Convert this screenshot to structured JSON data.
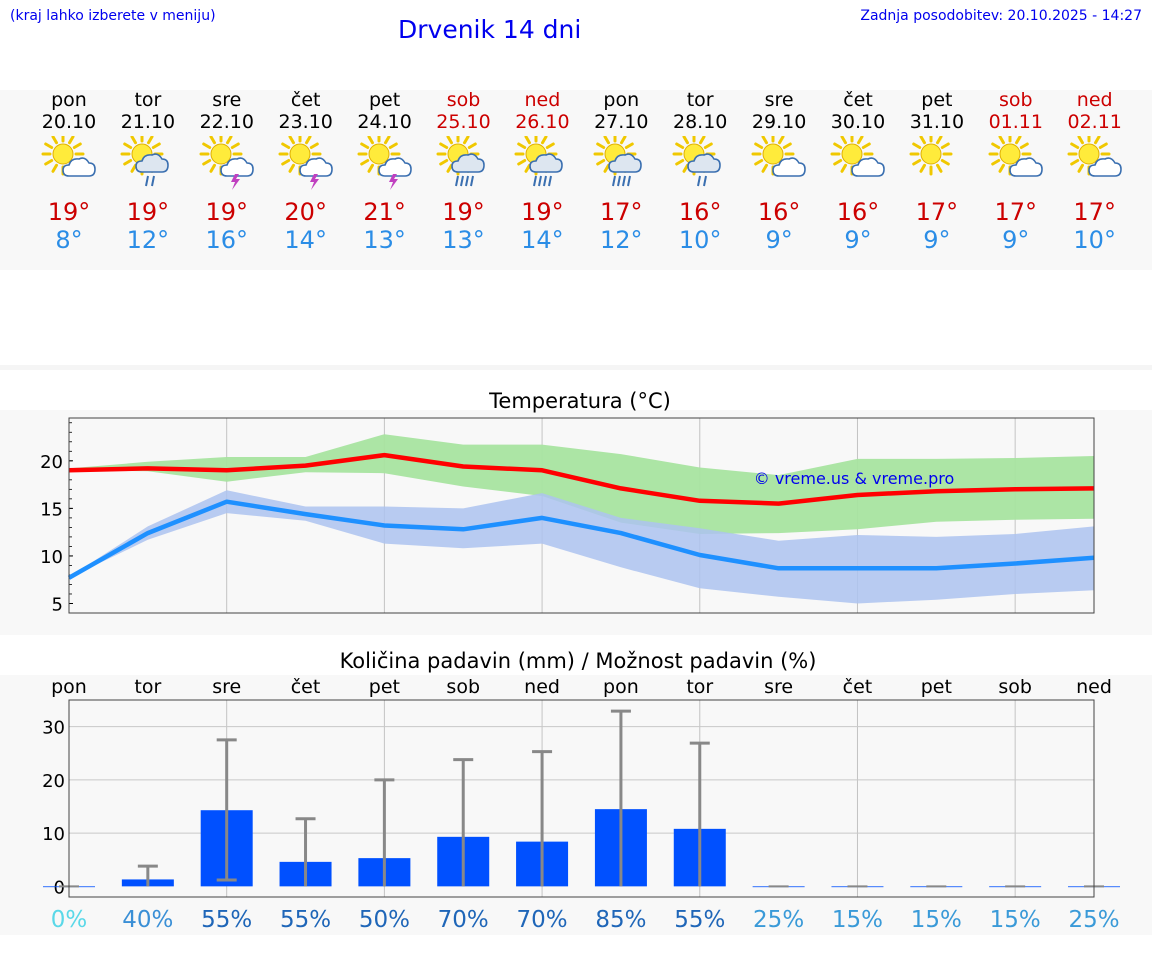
{
  "header": {
    "hint": "(kraj lahko izberete v meniju)",
    "title": "Drvenik 14 dni",
    "updated": "Zadnja posodobitev: 20.10.2025 - 14:27"
  },
  "colors": {
    "max_temp": "#cc0000",
    "min_temp": "#2b8de6",
    "link_blue": "#0000ee",
    "max_band": "#a8e4a0",
    "min_band": "#adc3f0",
    "bar": "#0050ff"
  },
  "days": [
    {
      "name": "pon",
      "date": "20.10",
      "weekend": false,
      "icon": "sun-cloud-icon",
      "max": "19°",
      "min": "8°"
    },
    {
      "name": "tor",
      "date": "21.10",
      "weekend": false,
      "icon": "sun-cloud-rain-icon",
      "max": "19°",
      "min": "12°"
    },
    {
      "name": "sre",
      "date": "22.10",
      "weekend": false,
      "icon": "sun-thunder-icon",
      "max": "19°",
      "min": "16°"
    },
    {
      "name": "čet",
      "date": "23.10",
      "weekend": false,
      "icon": "sun-thunder-icon",
      "max": "20°",
      "min": "14°"
    },
    {
      "name": "pet",
      "date": "24.10",
      "weekend": false,
      "icon": "sun-thunder-icon",
      "max": "21°",
      "min": "13°"
    },
    {
      "name": "sob",
      "date": "25.10",
      "weekend": true,
      "icon": "sun-cloud-heavy-rain-icon",
      "max": "19°",
      "min": "13°"
    },
    {
      "name": "ned",
      "date": "26.10",
      "weekend": true,
      "icon": "sun-cloud-heavy-rain-icon",
      "max": "19°",
      "min": "14°"
    },
    {
      "name": "pon",
      "date": "27.10",
      "weekend": false,
      "icon": "sun-cloud-heavy-rain-icon",
      "max": "17°",
      "min": "12°"
    },
    {
      "name": "tor",
      "date": "28.10",
      "weekend": false,
      "icon": "sun-cloud-rain-icon",
      "max": "16°",
      "min": "10°"
    },
    {
      "name": "sre",
      "date": "29.10",
      "weekend": false,
      "icon": "sun-cloud-icon",
      "max": "16°",
      "min": "9°"
    },
    {
      "name": "čet",
      "date": "30.10",
      "weekend": false,
      "icon": "sun-cloud-icon",
      "max": "16°",
      "min": "9°"
    },
    {
      "name": "pet",
      "date": "31.10",
      "weekend": false,
      "icon": "sun-icon",
      "max": "17°",
      "min": "9°"
    },
    {
      "name": "sob",
      "date": "01.11",
      "weekend": true,
      "icon": "sun-cloud-icon",
      "max": "17°",
      "min": "9°"
    },
    {
      "name": "ned",
      "date": "02.11",
      "weekend": true,
      "icon": "sun-cloud-icon",
      "max": "17°",
      "min": "10°"
    }
  ],
  "chart_data": [
    {
      "type": "line",
      "title": "Temperatura (°C)",
      "watermark": "© vreme.us & vreme.pro",
      "x": [
        0,
        1,
        2,
        3,
        4,
        5,
        6,
        7,
        8,
        9,
        10,
        11,
        12,
        13
      ],
      "ylim": [
        4,
        24.5
      ],
      "yticks": [
        5,
        10,
        15,
        20
      ],
      "grid": true,
      "series": [
        {
          "name": "max",
          "color": "#ff0000",
          "values": [
            19.0,
            19.2,
            19.0,
            19.5,
            20.6,
            19.4,
            19.0,
            17.1,
            15.8,
            15.5,
            16.4,
            16.8,
            17.0,
            17.1
          ],
          "band_low": [
            19.0,
            18.9,
            17.8,
            18.8,
            18.7,
            17.3,
            16.3,
            13.5,
            12.3,
            12.4,
            12.8,
            13.6,
            13.8,
            13.9
          ],
          "band_high": [
            19.2,
            19.9,
            20.4,
            20.4,
            22.8,
            21.7,
            21.7,
            20.7,
            19.3,
            18.5,
            20.2,
            20.2,
            20.3,
            20.5
          ]
        },
        {
          "name": "min",
          "color": "#1e90ff",
          "values": [
            7.7,
            12.4,
            15.7,
            14.4,
            13.2,
            12.8,
            14.0,
            12.4,
            10.1,
            8.7,
            8.7,
            8.7,
            9.2,
            9.8
          ],
          "band_low": [
            7.7,
            11.7,
            14.5,
            13.7,
            11.3,
            10.8,
            11.3,
            8.8,
            6.6,
            5.7,
            5.0,
            5.4,
            6.0,
            6.4
          ],
          "band_high": [
            7.8,
            13.1,
            16.9,
            15.2,
            15.2,
            15.0,
            16.6,
            14.0,
            12.9,
            11.6,
            12.2,
            12.0,
            12.3,
            13.1
          ]
        }
      ]
    },
    {
      "type": "bar",
      "title": "Količina padavin (mm) / Možnost padavin (%)",
      "categories": [
        "pon",
        "tor",
        "sre",
        "čet",
        "pet",
        "sob",
        "ned",
        "pon",
        "tor",
        "sre",
        "čet",
        "pet",
        "sob",
        "ned"
      ],
      "values": [
        0,
        1.3,
        14.3,
        4.6,
        5.3,
        9.3,
        8.4,
        14.5,
        10.8,
        0,
        0,
        0,
        0,
        0
      ],
      "error_low": [
        0,
        0,
        1.2,
        0,
        0,
        0,
        0,
        0,
        0,
        0,
        0,
        0,
        0,
        0
      ],
      "error_high": [
        0,
        3.8,
        27.5,
        12.7,
        20.0,
        23.8,
        25.3,
        32.9,
        26.9,
        0,
        0,
        0,
        0,
        0
      ],
      "probabilities": [
        "0%",
        "40%",
        "55%",
        "55%",
        "50%",
        "70%",
        "70%",
        "85%",
        "55%",
        "25%",
        "15%",
        "15%",
        "15%",
        "25%"
      ],
      "prob_colors": [
        "#5ad8e8",
        "#3a8fd6",
        "#1f66b8",
        "#1f66b8",
        "#1f66b8",
        "#1f66b8",
        "#1f66b8",
        "#1f66b8",
        "#1f66b8",
        "#3a9ad8",
        "#3a9ad8",
        "#3a9ad8",
        "#3a9ad8",
        "#3a9ad8"
      ],
      "ylim": [
        -2,
        35
      ],
      "yticks": [
        0,
        10,
        20,
        30
      ],
      "grid": true
    }
  ]
}
